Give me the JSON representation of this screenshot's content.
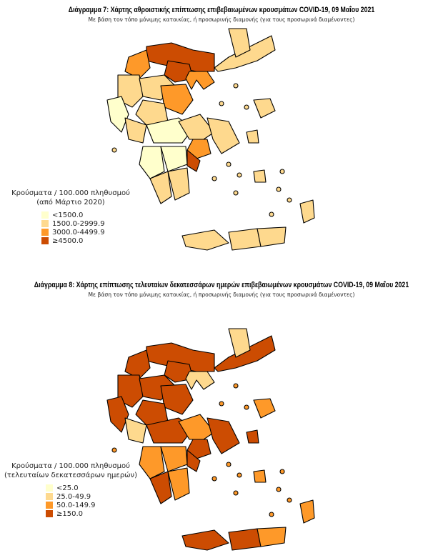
{
  "colors": [
    "#ffffcc",
    "#fed98e",
    "#fe9929",
    "#cc4c02"
  ],
  "map1": {
    "title": "Διάγραμμα 7: Χάρτης αθροιστικής επίπτωσης επιβεβαιωμένων κρουσμάτων COVID-19, 09 Μαΐου 2021",
    "subtitle": "Με βάση τον τόπο μόνιμης κατοικίας, ή προσωρινής διαμονής (για τους προσωρινά διαμένοντες)",
    "legend_title_1": "Κρούσματα / 100.000 πληθυσμού",
    "legend_title_2": "(από Μάρτιο 2020)",
    "legend": [
      "<1500.0",
      "1500.0-2999.9",
      "3000.0-4499.9",
      "≥4500.0"
    ],
    "region_levels": [
      1,
      3,
      2,
      3,
      2,
      1,
      0,
      1,
      2,
      1,
      1,
      0,
      1,
      2,
      1,
      0,
      0,
      1,
      1,
      3,
      1,
      1,
      1,
      1,
      1,
      1,
      1,
      1
    ]
  },
  "map2": {
    "title": "Διάγραμμα 8: Χάρτης επίπτωσης τελευταίων δεκατεσσάρων ημερών επιβεβαιωμένων κρουσμάτων COVID-19, 09 Μαΐου 2021",
    "subtitle": "Με βάση τον τόπο μόνιμης κατοικίας, ή προσωρινής διαμονής (για τους προσωρινά διαμένοντες)",
    "legend_title_1": "Κρούσματα / 100.000 πληθυσμού",
    "legend_title_2": "(τελευταίων δεκατεσσάρων ημερών)",
    "legend": [
      "<25.0",
      "25.0-49.9",
      "50.0-149.9",
      "≥150.0"
    ],
    "region_levels": [
      3,
      3,
      3,
      3,
      1,
      3,
      3,
      3,
      3,
      3,
      1,
      3,
      2,
      3,
      3,
      2,
      2,
      3,
      2,
      3,
      2,
      3,
      2,
      3,
      3,
      2,
      2,
      1
    ]
  }
}
